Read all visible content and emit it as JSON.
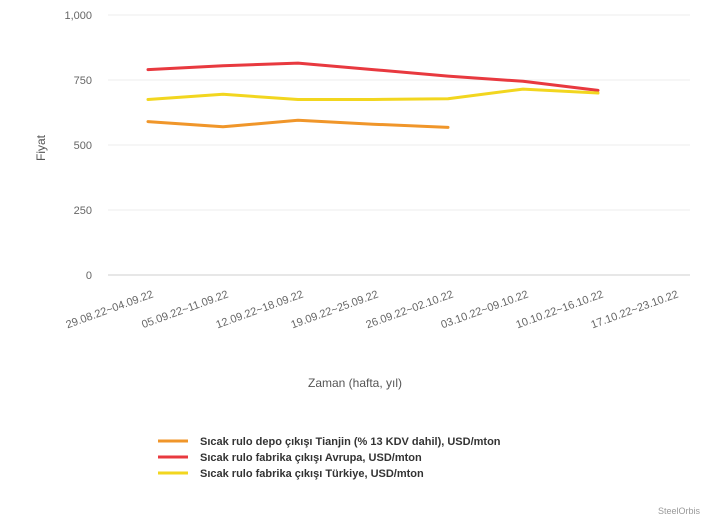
{
  "chart_data": {
    "type": "line",
    "xlabel": "Zaman (hafta, yıl)",
    "ylabel": "Fiyat",
    "ylim": [
      0,
      1000
    ],
    "y_ticks": [
      "0",
      "250",
      "500",
      "750",
      "1,000"
    ],
    "categories": [
      "29.08.22~04.09.22",
      "05.09.22~11.09.22",
      "12.09.22~18.09.22",
      "19.09.22~25.09.22",
      "26.09.22~02.10.22",
      "03.10.22~09.10.22",
      "10.10.22~16.10.22",
      "17.10.22~23.10.22"
    ],
    "series": [
      {
        "name": "Sıcak rulo depo çıkışı Tianjin (% 13 KDV dahil), USD/mton",
        "color": "#f0962a",
        "values": [
          590,
          570,
          595,
          580,
          568,
          null,
          null,
          null
        ]
      },
      {
        "name": "Sıcak rulo fabrika çıkışı Avrupa, USD/mton",
        "color": "#e8393f",
        "values": [
          790,
          805,
          815,
          790,
          765,
          745,
          710,
          null
        ]
      },
      {
        "name": "Sıcak rulo fabrika çıkışı Türkiye, USD/mton",
        "color": "#f2d61f",
        "values": [
          675,
          695,
          675,
          675,
          678,
          715,
          700,
          null
        ]
      }
    ],
    "legend_position": "bottom",
    "grid": true,
    "credit": "SteelOrbis"
  }
}
